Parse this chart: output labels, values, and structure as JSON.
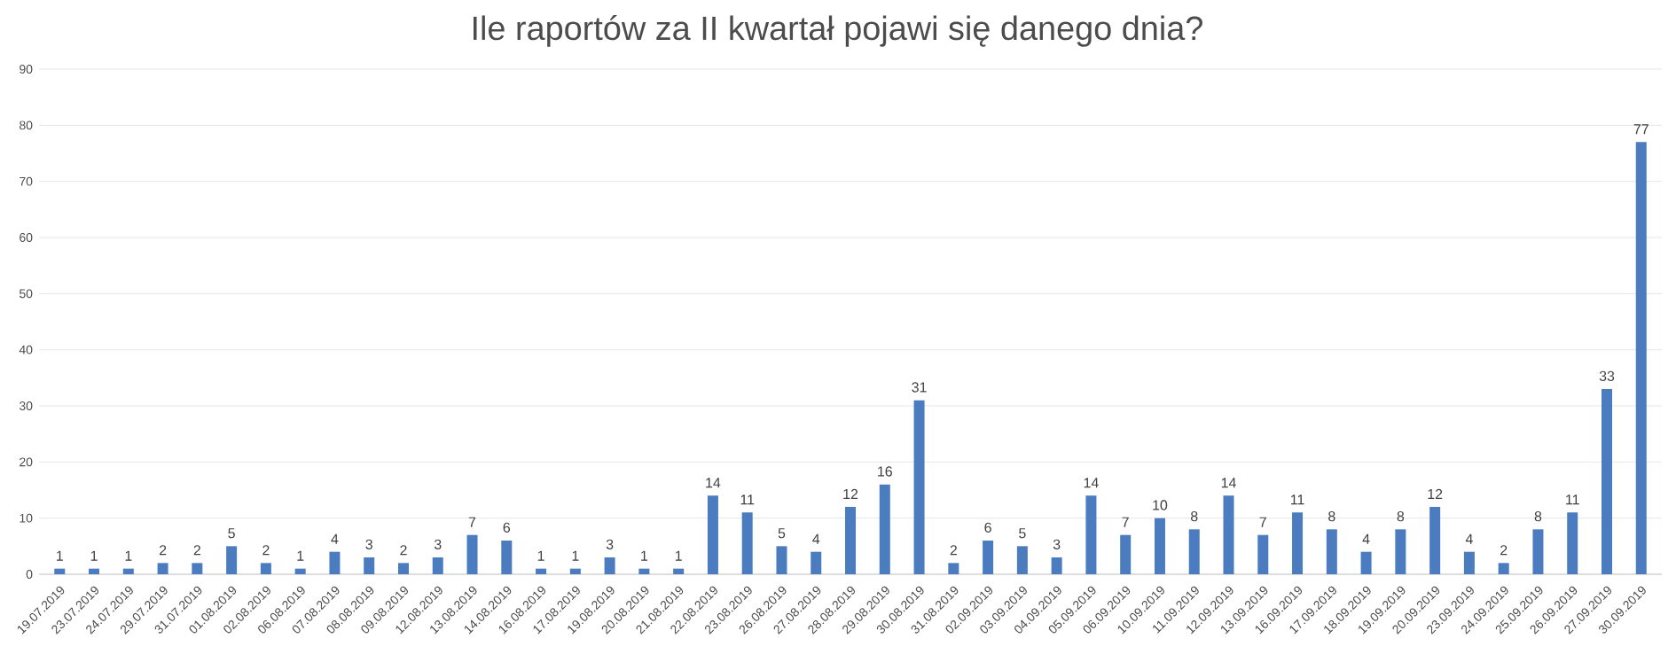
{
  "chart_data": {
    "type": "bar",
    "title": "Ile raportów za II kwartał pojawi się danego dnia?",
    "categories": [
      "19.07.2019",
      "23.07.2019",
      "24.07.2019",
      "29.07.2019",
      "31.07.2019",
      "01.08.2019",
      "02.08.2019",
      "06.08.2019",
      "07.08.2019",
      "08.08.2019",
      "09.08.2019",
      "12.08.2019",
      "13.08.2019",
      "14.08.2019",
      "16.08.2019",
      "17.08.2019",
      "19.08.2019",
      "20.08.2019",
      "21.08.2019",
      "22.08.2019",
      "23.08.2019",
      "26.08.2019",
      "27.08.2019",
      "28.08.2019",
      "29.08.2019",
      "30.08.2019",
      "31.08.2019",
      "02.09.2019",
      "03.09.2019",
      "04.09.2019",
      "05.09.2019",
      "06.09.2019",
      "10.09.2019",
      "11.09.2019",
      "12.09.2019",
      "13.09.2019",
      "16.09.2019",
      "17.09.2019",
      "18.09.2019",
      "19.09.2019",
      "20.09.2019",
      "23.09.2019",
      "24.09.2019",
      "25.09.2019",
      "26.09.2019",
      "27.09.2019",
      "30.09.2019"
    ],
    "values": [
      1,
      1,
      1,
      2,
      2,
      5,
      2,
      1,
      4,
      3,
      2,
      3,
      7,
      6,
      1,
      1,
      3,
      1,
      1,
      14,
      11,
      5,
      4,
      12,
      16,
      31,
      2,
      6,
      5,
      3,
      14,
      7,
      10,
      8,
      14,
      7,
      11,
      8,
      4,
      8,
      12,
      4,
      2,
      8,
      11,
      33,
      77
    ],
    "color": "#4a7cbf",
    "ylim": [
      0,
      90
    ],
    "yticks": [
      0,
      10,
      20,
      30,
      40,
      50,
      60,
      70,
      80,
      90
    ],
    "grid": "y",
    "data_labels": true
  }
}
